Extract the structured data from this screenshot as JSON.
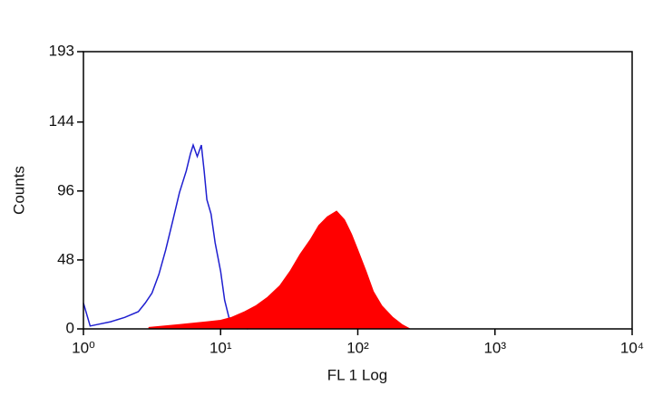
{
  "chart_data": {
    "type": "histogram-overlay",
    "xlabel": "FL 1 Log",
    "ylabel": "Counts",
    "xscale": "log",
    "xlim": [
      1,
      10000
    ],
    "xticks": [
      {
        "value": 1,
        "label": "10⁰"
      },
      {
        "value": 10,
        "label": "10¹"
      },
      {
        "value": 100,
        "label": "10²"
      },
      {
        "value": 1000,
        "label": "10³"
      },
      {
        "value": 10000,
        "label": "10⁴"
      }
    ],
    "ylim": [
      0,
      193
    ],
    "yticks": [
      0,
      48,
      96,
      144,
      193
    ],
    "series": [
      {
        "style": "outline",
        "color": "#1f1fd0",
        "x": [
          1,
          1.12,
          1.26,
          1.58,
          2.0,
          2.51,
          2.82,
          3.16,
          3.55,
          3.98,
          4.47,
          5.01,
          5.62,
          6.03,
          6.31,
          6.76,
          7.24,
          7.59,
          7.94,
          8.51,
          9.12,
          10,
          10.7,
          11.5,
          12.6,
          14.1,
          15.8
        ],
        "values": [
          18,
          2,
          3,
          5,
          8,
          12,
          18,
          25,
          38,
          55,
          75,
          95,
          110,
          122,
          128,
          120,
          128,
          110,
          90,
          80,
          60,
          40,
          20,
          8,
          3,
          1,
          0
        ]
      },
      {
        "style": "filled",
        "color": "#ff0000",
        "x": [
          3,
          5,
          8,
          10,
          12,
          15,
          18,
          22,
          27,
          32,
          38,
          45,
          52,
          60,
          70,
          80,
          90,
          100,
          115,
          130,
          150,
          180,
          210,
          240
        ],
        "values": [
          1,
          3,
          5,
          6,
          8,
          12,
          16,
          22,
          30,
          40,
          52,
          62,
          72,
          78,
          82,
          76,
          66,
          55,
          40,
          26,
          16,
          8,
          3,
          0
        ]
      }
    ]
  }
}
